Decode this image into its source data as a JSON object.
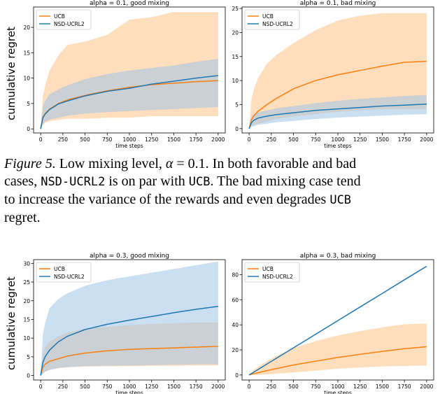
{
  "colors": {
    "ucb": "#ff7f0e",
    "ucb_band": "#ffcc99",
    "nsd": "#1f77b4",
    "nsd_band": "#9fc5e8"
  },
  "caption": {
    "label": "Figure 5.",
    "l1a": " Low mixing level, ",
    "alpha_sym": "α",
    "l1b": " = 0.1. In both favorable and bad",
    "l2a": "cases, ",
    "algo1": "NSD-UCRL2",
    "l2b": " is on par with ",
    "algo2": "UCB",
    "l2c": ". The bad mixing case tend",
    "l3a": "to increase the variance of the rewards and even degrades ",
    "algo3": "UCB",
    "l4": "regret."
  },
  "chart_data": [
    {
      "type": "line",
      "title": "alpha = 0.1, good mixing",
      "xlabel": "time steps",
      "ylabel": "cumulative regret",
      "xlim": [
        -80,
        2080
      ],
      "ylim": [
        -0.8,
        24
      ],
      "xticks": [
        0,
        250,
        500,
        750,
        1000,
        1250,
        1500,
        1750,
        2000
      ],
      "yticks": [
        0,
        5,
        10,
        15,
        20
      ],
      "legend": "top-left",
      "x": [
        0,
        25,
        50,
        100,
        200,
        300,
        500,
        750,
        1000,
        1250,
        1500,
        1750,
        2000
      ],
      "series": [
        {
          "name": "UCB",
          "values": [
            0,
            2.3,
            3.0,
            3.9,
            5.0,
            5.7,
            6.6,
            7.5,
            8.2,
            8.7,
            9.0,
            9.3,
            9.5
          ],
          "band_high": [
            0,
            6.5,
            8.5,
            11.5,
            14.5,
            16.5,
            17.2,
            18.5,
            21.5,
            22.0,
            23.0,
            23.0,
            23.0
          ],
          "band_low": [
            0,
            0.8,
            1.2,
            1.5,
            1.8,
            2.0,
            2.0,
            2.2,
            2.2,
            2.5,
            2.5,
            2.5,
            2.5
          ]
        },
        {
          "name": "NSD-UCRL2",
          "values": [
            0,
            2.2,
            2.9,
            3.8,
            4.9,
            5.5,
            6.5,
            7.4,
            8.0,
            8.8,
            9.4,
            10.0,
            10.5
          ],
          "band_high": [
            0,
            4.5,
            5.5,
            6.8,
            7.8,
            8.6,
            9.8,
            10.8,
            11.5,
            12.0,
            12.5,
            13.2,
            13.8
          ],
          "band_low": [
            0,
            1.0,
            1.4,
            1.8,
            2.2,
            2.6,
            3.0,
            3.3,
            3.5,
            3.7,
            3.9,
            4.1,
            4.3
          ]
        }
      ]
    },
    {
      "type": "line",
      "title": "alpha = 0.1, bad mixing",
      "xlabel": "time steps",
      "ylabel": "",
      "xlim": [
        -80,
        2080
      ],
      "ylim": [
        -0.9,
        25.3
      ],
      "xticks": [
        0,
        250,
        500,
        750,
        1000,
        1250,
        1500,
        1750,
        2000
      ],
      "yticks": [
        0,
        5,
        10,
        15,
        20,
        25
      ],
      "legend": "top-left",
      "x": [
        0,
        25,
        50,
        100,
        200,
        300,
        500,
        750,
        1000,
        1250,
        1500,
        1750,
        2000
      ],
      "series": [
        {
          "name": "UCB",
          "values": [
            0,
            1.8,
            2.6,
            3.6,
            5.0,
            6.2,
            8.3,
            10.0,
            11.2,
            12.1,
            13.0,
            13.8,
            14.0
          ],
          "band_high": [
            0,
            6.0,
            8.0,
            10.5,
            13.5,
            15.2,
            17.8,
            20.5,
            22.5,
            23.5,
            24.0,
            24.0,
            24.0
          ],
          "band_low": [
            0,
            0.5,
            0.8,
            1.0,
            1.5,
            2.0,
            2.5,
            3.0,
            3.5,
            3.8,
            4.0,
            4.0,
            4.0
          ]
        },
        {
          "name": "NSD-UCRL2",
          "values": [
            0,
            1.2,
            1.7,
            2.2,
            2.6,
            2.9,
            3.3,
            3.8,
            4.1,
            4.4,
            4.7,
            4.9,
            5.1
          ],
          "band_high": [
            0,
            2.5,
            3.0,
            3.4,
            3.8,
            4.2,
            4.7,
            5.3,
            5.8,
            6.2,
            6.5,
            6.8,
            7.0
          ],
          "band_low": [
            0,
            0.3,
            0.5,
            0.8,
            1.0,
            1.3,
            1.6,
            2.0,
            2.3,
            2.5,
            2.7,
            2.9,
            3.0
          ]
        }
      ]
    },
    {
      "type": "line",
      "title": "alpha = 0.3, good mixing",
      "xlabel": "time steps",
      "ylabel": "cumulative regret",
      "xlim": [
        -80,
        2080
      ],
      "ylim": [
        -1.2,
        31
      ],
      "xticks": [
        0,
        250,
        500,
        750,
        1000,
        1250,
        1500,
        1750,
        2000
      ],
      "yticks": [
        0,
        5,
        10,
        15,
        20,
        25,
        30
      ],
      "legend": "top-left",
      "x": [
        0,
        25,
        50,
        100,
        200,
        300,
        500,
        750,
        1000,
        1250,
        1500,
        1750,
        2000
      ],
      "series": [
        {
          "name": "UCB",
          "values": [
            0,
            2.2,
            3.0,
            3.8,
            4.5,
            5.2,
            6.0,
            6.6,
            7.0,
            7.2,
            7.4,
            7.6,
            7.8
          ],
          "band_high": [
            0,
            5.5,
            7.5,
            9.0,
            10.5,
            11.5,
            12.5,
            13.0,
            13.5,
            13.8,
            14.0,
            14.2,
            14.2
          ],
          "band_low": [
            0,
            0.5,
            1.0,
            1.5,
            2.0,
            2.2,
            2.4,
            2.5,
            2.5,
            2.6,
            2.6,
            2.7,
            2.7
          ]
        },
        {
          "name": "NSD-UCRL2",
          "values": [
            0,
            3.5,
            5.0,
            6.8,
            9.0,
            10.5,
            12.3,
            13.7,
            14.8,
            15.8,
            16.8,
            17.7,
            18.5
          ],
          "band_high": [
            0,
            11.0,
            14.0,
            18.0,
            20.5,
            22.0,
            24.0,
            25.5,
            26.5,
            27.5,
            28.5,
            29.5,
            30.5
          ],
          "band_low": [
            0,
            0.5,
            1.0,
            1.5,
            2.0,
            2.2,
            2.5,
            2.6,
            2.7,
            2.8,
            2.9,
            3.0,
            3.0
          ]
        }
      ]
    },
    {
      "type": "line",
      "title": "alpha = 0.3, bad mixing",
      "xlabel": "time steps",
      "ylabel": "",
      "xlim": [
        -80,
        2080
      ],
      "ylim": [
        -4,
        92
      ],
      "xticks": [
        0,
        250,
        500,
        750,
        1000,
        1250,
        1500,
        1750,
        2000
      ],
      "yticks": [
        0,
        20,
        40,
        60,
        80
      ],
      "legend": "top-left",
      "x": [
        0,
        25,
        50,
        100,
        200,
        300,
        500,
        750,
        1000,
        1250,
        1500,
        1750,
        2000
      ],
      "series": [
        {
          "name": "UCB",
          "values": [
            0,
            0.5,
            1.0,
            1.8,
            3.5,
            5.0,
            8.0,
            11.0,
            14.0,
            16.5,
            18.8,
            21.0,
            22.5
          ],
          "band_high": [
            0,
            2.0,
            4.0,
            6.5,
            11.0,
            15.0,
            21.5,
            27.0,
            31.5,
            35.0,
            38.0,
            40.5,
            41.0
          ],
          "band_low": [
            0,
            0,
            0,
            0,
            0.5,
            1.0,
            2.0,
            3.5,
            5.0,
            6.0,
            6.8,
            7.2,
            7.5
          ]
        },
        {
          "name": "NSD-UCRL2",
          "values": [
            0,
            1.1,
            2.2,
            4.3,
            8.7,
            13.0,
            21.7,
            32.5,
            43.4,
            54.2,
            65.0,
            75.9,
            86.7
          ]
        }
      ]
    }
  ]
}
